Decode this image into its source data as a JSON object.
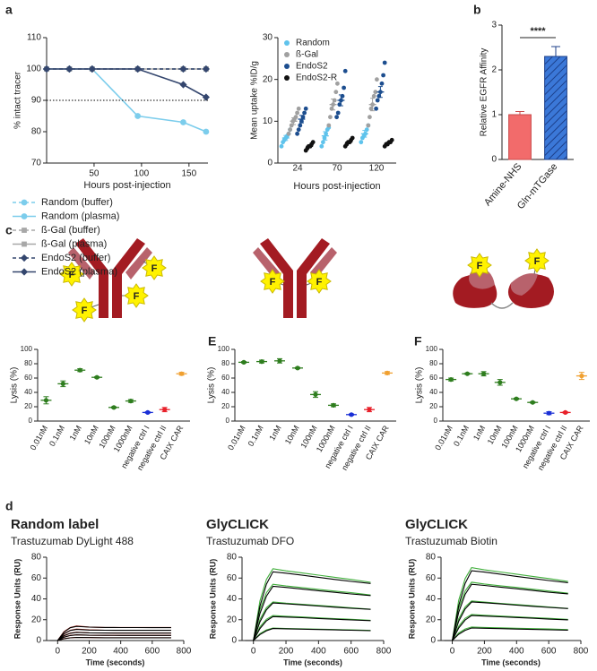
{
  "panel_labels": [
    "a",
    "b",
    "c",
    "E",
    "F",
    "d"
  ],
  "diagrams": [
    {
      "labels": [
        "F",
        "F",
        "F",
        "F"
      ]
    },
    {
      "labels": [
        "F",
        "F"
      ]
    },
    {
      "labels": [
        "F",
        "F"
      ]
    }
  ],
  "chart_data": [
    {
      "type": "line",
      "xlabel": "Hours post-injection",
      "ylabel": "% intact tracer",
      "x": [
        0,
        24,
        48,
        96,
        144,
        168
      ],
      "xlim": [
        0,
        170
      ],
      "xticks": [
        50,
        100,
        150
      ],
      "ylim": [
        70,
        110
      ],
      "yticks": [
        70,
        80,
        90,
        100,
        110
      ],
      "hline": 90,
      "legend": "below",
      "series": [
        {
          "name": "Random (buffer)",
          "color": "#7ccdec",
          "line_style": "dashed",
          "marker": "circle",
          "values": [
            100,
            100,
            100,
            100,
            100,
            100
          ]
        },
        {
          "name": "Random (plasma)",
          "color": "#7ccdec",
          "line_style": "solid",
          "marker": "circle",
          "values": [
            100,
            100,
            100,
            85,
            83,
            80
          ]
        },
        {
          "name": "ß-Gal (buffer)",
          "color": "#a8a8a8",
          "line_style": "dashed",
          "marker": "square",
          "values": [
            100,
            100,
            100,
            100,
            100,
            100
          ]
        },
        {
          "name": "ß-Gal (plasma)",
          "color": "#a8a8a8",
          "line_style": "solid",
          "marker": "square",
          "values": [
            100,
            100,
            100,
            100,
            100,
            100
          ]
        },
        {
          "name": "EndoS2 (buffer)",
          "color": "#34466e",
          "line_style": "dashed",
          "marker": "diamond",
          "values": [
            100,
            100,
            100,
            100,
            100,
            100
          ]
        },
        {
          "name": "EndoS2 (plasma)",
          "color": "#34466e",
          "line_style": "solid",
          "marker": "diamond",
          "values": [
            100,
            100,
            100,
            100,
            95,
            91
          ]
        }
      ]
    },
    {
      "type": "strip",
      "xlabel": "Hours post-injection",
      "ylabel": "Mean uptake %ID/g",
      "categories": [
        "24",
        "70",
        "120"
      ],
      "ylim": [
        0,
        30
      ],
      "yticks": [
        0,
        10,
        20,
        30
      ],
      "legend": "upper left",
      "series": [
        {
          "name": "Random",
          "color": "#5fc3ec",
          "values": [
            6,
            6.5,
            7
          ],
          "errors": [
            0.6,
            1,
            0.8
          ],
          "points": [
            [
              4,
              5,
              5.5,
              6,
              6.5,
              7,
              8
            ],
            [
              4,
              5,
              6,
              7,
              8,
              8.5
            ],
            [
              5,
              6,
              6.5,
              7,
              8,
              9
            ]
          ]
        },
        {
          "name": "ß-Gal",
          "color": "#a0a0a0",
          "values": [
            10,
            14,
            14
          ],
          "errors": [
            0.8,
            1.3,
            1.5
          ],
          "points": [
            [
              7,
              8,
              9,
              10,
              10.5,
              11,
              12,
              13
            ],
            [
              9,
              11,
              13,
              14,
              15,
              17,
              19
            ],
            [
              9,
              11,
              13,
              14,
              16,
              17,
              20
            ]
          ]
        },
        {
          "name": "EndoS2",
          "color": "#1d4e8f",
          "values": [
            10.5,
            15,
            17
          ],
          "errors": [
            0.9,
            1.3,
            1.3
          ],
          "points": [
            [
              7,
              8,
              9,
              10,
              11,
              12,
              13
            ],
            [
              11,
              12,
              14,
              15,
              16,
              18,
              22
            ],
            [
              13,
              15,
              16,
              17,
              19,
              21,
              24
            ]
          ]
        },
        {
          "name": "EndoS2-R",
          "color": "#111111",
          "values": [
            4,
            5,
            4.8
          ],
          "errors": [
            0.3,
            0.3,
            0.2
          ],
          "points": [
            [
              3,
              3.5,
              4,
              4,
              4.5,
              5
            ],
            [
              4,
              4.5,
              5,
              5,
              5.5,
              6
            ],
            [
              4,
              4.5,
              4.5,
              5,
              5,
              5.5
            ]
          ]
        }
      ]
    },
    {
      "type": "bar",
      "ylabel": "Relative EGFR Affinity",
      "categories": [
        "Amine-NHS",
        "Gln-mTGase"
      ],
      "values": [
        1.0,
        2.3
      ],
      "errors": [
        0.07,
        0.22
      ],
      "colors": [
        "#f26b6b",
        "#3b78d8"
      ],
      "hatch": [
        false,
        true
      ],
      "annotation": "****",
      "ylim": [
        0,
        3
      ],
      "yticks": [
        0,
        1,
        2,
        3
      ]
    },
    {
      "type": "dot",
      "ylabel": "Lysis (%)",
      "categories": [
        "0.01nM",
        "0.1nM",
        "1nM",
        "10nM",
        "100nM",
        "1000nM",
        "negative ctrl I",
        "negative ctrl II",
        "CAIX CAR"
      ],
      "values": [
        29,
        52,
        71,
        61,
        19,
        28,
        12,
        16,
        66
      ],
      "errors": [
        5,
        4,
        2,
        1,
        1,
        2,
        1,
        3,
        2
      ],
      "colors": [
        "#2e7d1e",
        "#2e7d1e",
        "#2e7d1e",
        "#2e7d1e",
        "#2e7d1e",
        "#2e7d1e",
        "#1a2fd6",
        "#e8202a",
        "#f0a030"
      ],
      "ylim": [
        0,
        100
      ],
      "yticks": [
        0,
        20,
        40,
        60,
        80,
        100
      ]
    },
    {
      "type": "dot",
      "ylabel": "Lysis (%)",
      "categories": [
        "0.01nM",
        "0.1nM",
        "1nM",
        "10nM",
        "100nM",
        "1000nM",
        "negative ctrl I",
        "negative ctrl II",
        "CAIX CAR"
      ],
      "values": [
        82,
        83,
        84,
        74,
        37,
        22,
        9,
        16,
        67
      ],
      "errors": [
        1,
        2,
        3,
        1,
        4,
        2,
        1,
        3,
        2
      ],
      "colors": [
        "#2e7d1e",
        "#2e7d1e",
        "#2e7d1e",
        "#2e7d1e",
        "#2e7d1e",
        "#2e7d1e",
        "#1a2fd6",
        "#e8202a",
        "#f0a030"
      ],
      "ylim": [
        0,
        100
      ],
      "yticks": [
        0,
        20,
        40,
        60,
        80,
        100
      ]
    },
    {
      "type": "dot",
      "ylabel": "Lysis (%)",
      "categories": [
        "0.01nM",
        "0.1nM",
        "1nM",
        "10nM",
        "100nM",
        "1000nM",
        "negative ctrl I",
        "negative ctrl II",
        "CAIX CAR"
      ],
      "values": [
        58,
        66,
        66,
        54,
        31,
        26,
        11,
        12,
        63
      ],
      "errors": [
        2,
        1,
        3,
        4,
        1,
        1,
        2,
        1,
        5
      ],
      "colors": [
        "#2e7d1e",
        "#2e7d1e",
        "#2e7d1e",
        "#2e7d1e",
        "#2e7d1e",
        "#2e7d1e",
        "#1a2fd6",
        "#e8202a",
        "#f0a030"
      ],
      "ylim": [
        0,
        100
      ],
      "yticks": [
        0,
        20,
        40,
        60,
        80,
        100
      ]
    },
    {
      "type": "line",
      "title": "Random label",
      "subtitle": "Trastuzumab DyLight 488",
      "xlabel": "Time (seconds)",
      "ylabel": "Response Units (RU)",
      "x": [
        -50,
        0,
        40,
        80,
        120,
        200,
        300,
        400,
        500,
        600,
        720
      ],
      "xlim": [
        -70,
        800
      ],
      "xticks": [
        0,
        200,
        400,
        600,
        800
      ],
      "ylim": [
        0,
        80
      ],
      "yticks": [
        0,
        20,
        40,
        60,
        80
      ],
      "series": [
        {
          "color": "#d2483c",
          "values": [
            0,
            0,
            8.4,
            12.6,
            14,
            13,
            12.6,
            12.6,
            12.6,
            12.6,
            12.6
          ]
        },
        {
          "color": "#d2483c",
          "values": [
            0,
            0,
            6.6,
            9.9,
            11,
            10.2,
            9.9,
            9.9,
            9.9,
            9.9,
            9.9
          ]
        },
        {
          "color": "#d2483c",
          "values": [
            0,
            0,
            4.8,
            7.2,
            8,
            7.4,
            7.2,
            7.2,
            7.2,
            7.2,
            7.2
          ]
        },
        {
          "color": "#d2483c",
          "values": [
            0,
            0,
            3.3,
            5,
            5.5,
            5.1,
            5,
            5,
            5,
            5,
            5
          ]
        },
        {
          "color": "#d2483c",
          "values": [
            0,
            0,
            1.8,
            2.7,
            3,
            2.8,
            2.7,
            2.7,
            2.7,
            2.7,
            2.7
          ]
        },
        {
          "color": "#000000",
          "values": [
            0,
            0,
            8,
            12.3,
            13.6,
            12.9,
            12.6,
            12.5,
            12.5,
            12.4,
            12.4
          ]
        },
        {
          "color": "#000000",
          "values": [
            0,
            0,
            6.3,
            9.6,
            10.7,
            10.1,
            9.9,
            9.8,
            9.8,
            9.8,
            9.8
          ]
        },
        {
          "color": "#000000",
          "values": [
            0,
            0,
            4.6,
            7,
            7.8,
            7.4,
            7.2,
            7.1,
            7.1,
            7.1,
            7.1
          ]
        },
        {
          "color": "#000000",
          "values": [
            0,
            0,
            3.2,
            4.8,
            5.4,
            5.1,
            5,
            4.9,
            4.9,
            4.9,
            4.9
          ]
        },
        {
          "color": "#000000",
          "values": [
            0,
            0,
            1.7,
            2.6,
            2.9,
            2.8,
            2.7,
            2.7,
            2.7,
            2.7,
            2.7
          ]
        }
      ]
    },
    {
      "type": "line",
      "title": "GlyCLICK",
      "subtitle": "Trastuzumab DFO",
      "xlabel": "Time (seconds)",
      "ylabel": "Response Units (RU)",
      "x": [
        -50,
        0,
        40,
        80,
        120,
        200,
        300,
        400,
        500,
        600,
        720
      ],
      "xlim": [
        -70,
        800
      ],
      "xticks": [
        0,
        200,
        400,
        600,
        800
      ],
      "ylim": [
        0,
        80
      ],
      "yticks": [
        0,
        20,
        40,
        60,
        80
      ],
      "series": [
        {
          "color": "#3fae3a",
          "values": [
            0,
            0,
            38,
            58.7,
            69,
            66.9,
            64.9,
            62.8,
            60.7,
            58.7,
            55.9
          ]
        },
        {
          "color": "#3fae3a",
          "values": [
            0,
            0,
            29.7,
            45.9,
            54,
            52.4,
            50.8,
            49.1,
            47.5,
            45.9,
            43.7
          ]
        },
        {
          "color": "#3fae3a",
          "values": [
            0,
            0,
            20.4,
            31.5,
            37,
            35.9,
            34.8,
            33.7,
            32.6,
            31.5,
            30
          ]
        },
        {
          "color": "#3fae3a",
          "values": [
            0,
            0,
            13.2,
            20.4,
            24,
            23.3,
            22.6,
            21.8,
            21.1,
            20.4,
            19.4
          ]
        },
        {
          "color": "#3fae3a",
          "values": [
            0,
            0,
            6.6,
            10.2,
            12,
            11.6,
            11.3,
            10.9,
            10.6,
            10.2,
            9.7
          ]
        },
        {
          "color": "#000000",
          "values": [
            0,
            0,
            33,
            54.1,
            66,
            64.7,
            62.7,
            60.7,
            58.7,
            56.8,
            54.8
          ]
        },
        {
          "color": "#000000",
          "values": [
            0,
            0,
            26,
            42.6,
            52,
            51,
            49.4,
            47.8,
            46.3,
            44.7,
            43.2
          ]
        },
        {
          "color": "#000000",
          "values": [
            0,
            0,
            18,
            29.5,
            36,
            35.3,
            34.2,
            33.1,
            32,
            31,
            29.9
          ]
        },
        {
          "color": "#000000",
          "values": [
            0,
            0,
            11.5,
            18.9,
            23,
            22.5,
            21.9,
            21.2,
            20.5,
            19.8,
            19.1
          ]
        },
        {
          "color": "#000000",
          "values": [
            0,
            0,
            5.8,
            9.4,
            11.5,
            11.3,
            10.9,
            10.6,
            10.2,
            9.9,
            9.5
          ]
        }
      ]
    },
    {
      "type": "line",
      "title": "GlyCLICK",
      "subtitle": "Trastuzumab Biotin",
      "xlabel": "Time (seconds)",
      "ylabel": "Response Units (RU)",
      "x": [
        -50,
        0,
        40,
        80,
        120,
        200,
        300,
        400,
        500,
        600,
        720
      ],
      "xlim": [
        -70,
        800
      ],
      "xticks": [
        0,
        200,
        400,
        600,
        800
      ],
      "ylim": [
        0,
        80
      ],
      "yticks": [
        0,
        20,
        40,
        60,
        80
      ],
      "series": [
        {
          "color": "#3fae3a",
          "values": [
            0,
            0,
            38.5,
            59.5,
            70,
            67.9,
            65.8,
            63.7,
            61.6,
            59.5,
            56.7
          ]
        },
        {
          "color": "#3fae3a",
          "values": [
            0,
            0,
            30.8,
            47.6,
            56,
            54.3,
            52.6,
            51,
            49.3,
            47.6,
            45.4
          ]
        },
        {
          "color": "#3fae3a",
          "values": [
            0,
            0,
            20.9,
            32.3,
            38,
            36.9,
            35.7,
            34.6,
            33.4,
            32.3,
            30.8
          ]
        },
        {
          "color": "#3fae3a",
          "values": [
            0,
            0,
            13.8,
            21.3,
            25,
            24.3,
            23.5,
            22.8,
            22,
            21.3,
            20.3
          ]
        },
        {
          "color": "#3fae3a",
          "values": [
            0,
            0,
            7.2,
            11.1,
            13,
            12.6,
            12.2,
            11.8,
            11.4,
            11.1,
            10.5
          ]
        },
        {
          "color": "#000000",
          "values": [
            0,
            0,
            33.5,
            54.9,
            67,
            65.7,
            63.7,
            61.6,
            59.6,
            57.6,
            55.6
          ]
        },
        {
          "color": "#000000",
          "values": [
            0,
            0,
            27,
            44.3,
            54,
            52.9,
            51.3,
            49.7,
            48.1,
            46.4,
            44.8
          ]
        },
        {
          "color": "#000000",
          "values": [
            0,
            0,
            18.5,
            30.3,
            37,
            36.3,
            35.2,
            34,
            32.9,
            31.8,
            30.7
          ]
        },
        {
          "color": "#000000",
          "values": [
            0,
            0,
            12,
            19.7,
            24,
            23.5,
            22.8,
            22.1,
            21.4,
            20.6,
            19.9
          ]
        },
        {
          "color": "#000000",
          "values": [
            0,
            0,
            6,
            9.8,
            12,
            11.8,
            11.4,
            11,
            10.7,
            10.3,
            10
          ]
        }
      ]
    }
  ]
}
